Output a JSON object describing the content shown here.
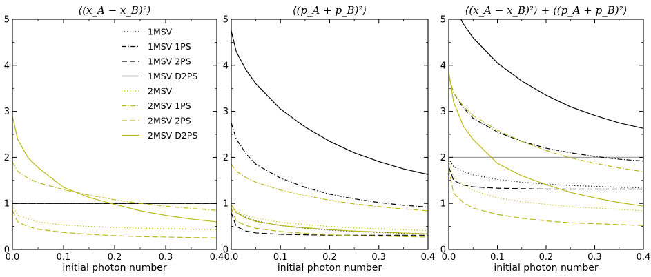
{
  "chart_data": [
    {
      "type": "line",
      "title": "⟨(x_A − x_B)²⟩",
      "xlabel": "initial photon number",
      "ylabel": "",
      "xlim": [
        0,
        0.4
      ],
      "ylim": [
        0,
        5
      ],
      "xticks": [
        "0.0",
        "0.1",
        "0.2",
        "0.3",
        "0.4"
      ],
      "yticks": [
        "0",
        "1",
        "2",
        "3",
        "4",
        "5"
      ],
      "grid": false,
      "legend_position": "top-right",
      "series": [
        {
          "name": "1MSV",
          "x": [
            0,
            0.1,
            0.2,
            0.3,
            0.4
          ],
          "y": [
            1.0,
            1.0,
            1.0,
            1.0,
            1.0
          ]
        },
        {
          "name": "1MSV 1PS",
          "x": [
            0,
            0.1,
            0.2,
            0.3,
            0.4
          ],
          "y": [
            1.0,
            1.0,
            1.0,
            1.0,
            1.0
          ]
        },
        {
          "name": "1MSV 2PS",
          "x": [
            0,
            0.1,
            0.2,
            0.3,
            0.4
          ],
          "y": [
            1.0,
            1.0,
            1.0,
            1.0,
            1.0
          ]
        },
        {
          "name": "1MSV D2PS",
          "x": [
            0,
            0.1,
            0.2,
            0.3,
            0.4
          ],
          "y": [
            1.0,
            1.0,
            1.0,
            1.0,
            1.0
          ]
        },
        {
          "name": "2MSV",
          "x": [
            0,
            0.01,
            0.03,
            0.05,
            0.1,
            0.15,
            0.2,
            0.25,
            0.3,
            0.35,
            0.4
          ],
          "y": [
            0.95,
            0.75,
            0.66,
            0.6,
            0.53,
            0.5,
            0.48,
            0.46,
            0.45,
            0.44,
            0.43
          ]
        },
        {
          "name": "2MSV 1PS",
          "x": [
            0,
            0.01,
            0.03,
            0.05,
            0.1,
            0.15,
            0.2,
            0.25,
            0.3,
            0.35,
            0.4
          ],
          "y": [
            1.9,
            1.7,
            1.55,
            1.45,
            1.3,
            1.18,
            1.08,
            1.0,
            0.94,
            0.89,
            0.85
          ]
        },
        {
          "name": "2MSV 2PS",
          "x": [
            0,
            0.01,
            0.03,
            0.05,
            0.1,
            0.15,
            0.2,
            0.25,
            0.3,
            0.35,
            0.4
          ],
          "y": [
            0.85,
            0.6,
            0.5,
            0.44,
            0.37,
            0.33,
            0.3,
            0.28,
            0.27,
            0.26,
            0.25
          ]
        },
        {
          "name": "2MSV D2PS",
          "x": [
            0,
            0.01,
            0.03,
            0.05,
            0.1,
            0.15,
            0.2,
            0.25,
            0.3,
            0.35,
            0.4
          ],
          "y": [
            2.9,
            2.4,
            2.0,
            1.78,
            1.35,
            1.13,
            0.98,
            0.84,
            0.74,
            0.66,
            0.6
          ]
        }
      ]
    },
    {
      "type": "line",
      "title": "⟨(p_A + p_B)²⟩",
      "xlabel": "initial photon number",
      "ylabel": "",
      "xlim": [
        0,
        0.4
      ],
      "ylim": [
        0,
        5
      ],
      "xticks": [
        "0.0",
        "0.1",
        "0.2",
        "0.3",
        "0.4"
      ],
      "yticks": [
        "0",
        "1",
        "2",
        "3",
        "4",
        "5"
      ],
      "grid": false,
      "series": [
        {
          "name": "1MSV",
          "x": [
            0,
            0.01,
            0.03,
            0.05,
            0.1,
            0.15,
            0.2,
            0.25,
            0.3,
            0.35,
            0.4
          ],
          "y": [
            0.97,
            0.8,
            0.7,
            0.62,
            0.52,
            0.46,
            0.42,
            0.39,
            0.37,
            0.35,
            0.34
          ]
        },
        {
          "name": "1MSV 1PS",
          "x": [
            0,
            0.01,
            0.03,
            0.05,
            0.1,
            0.15,
            0.2,
            0.25,
            0.3,
            0.35,
            0.4
          ],
          "y": [
            2.75,
            2.4,
            2.08,
            1.85,
            1.55,
            1.35,
            1.2,
            1.1,
            1.02,
            0.96,
            0.92
          ]
        },
        {
          "name": "1MSV 2PS",
          "x": [
            0,
            0.01,
            0.03,
            0.05,
            0.1,
            0.15,
            0.2,
            0.25,
            0.3,
            0.35,
            0.4
          ],
          "y": [
            0.8,
            0.5,
            0.4,
            0.36,
            0.33,
            0.32,
            0.31,
            0.31,
            0.31,
            0.31,
            0.31
          ]
        },
        {
          "name": "1MSV D2PS",
          "x": [
            0,
            0.01,
            0.03,
            0.05,
            0.1,
            0.15,
            0.2,
            0.25,
            0.3,
            0.35,
            0.4
          ],
          "y": [
            4.75,
            4.3,
            3.9,
            3.6,
            3.05,
            2.66,
            2.35,
            2.1,
            1.91,
            1.75,
            1.63
          ]
        },
        {
          "name": "2MSV",
          "x": [
            0,
            0.01,
            0.03,
            0.05,
            0.1,
            0.15,
            0.2,
            0.25,
            0.3,
            0.35,
            0.4
          ],
          "y": [
            0.97,
            0.83,
            0.74,
            0.68,
            0.59,
            0.54,
            0.5,
            0.47,
            0.45,
            0.43,
            0.41
          ]
        },
        {
          "name": "2MSV 1PS",
          "x": [
            0,
            0.01,
            0.03,
            0.05,
            0.1,
            0.15,
            0.2,
            0.25,
            0.3,
            0.35,
            0.4
          ],
          "y": [
            1.85,
            1.7,
            1.56,
            1.46,
            1.29,
            1.17,
            1.07,
            0.99,
            0.93,
            0.88,
            0.84
          ]
        },
        {
          "name": "2MSV 2PS",
          "x": [
            0,
            0.01,
            0.03,
            0.05,
            0.1,
            0.15,
            0.2,
            0.25,
            0.3,
            0.35,
            0.4
          ],
          "y": [
            0.9,
            0.62,
            0.52,
            0.46,
            0.39,
            0.35,
            0.32,
            0.3,
            0.29,
            0.28,
            0.27
          ]
        },
        {
          "name": "2MSV D2PS",
          "x": [
            0,
            0.01,
            0.03,
            0.05,
            0.1,
            0.15,
            0.2,
            0.25,
            0.3,
            0.35,
            0.4
          ],
          "y": [
            0.97,
            0.8,
            0.68,
            0.61,
            0.52,
            0.47,
            0.43,
            0.4,
            0.38,
            0.36,
            0.34
          ]
        }
      ]
    },
    {
      "type": "line",
      "title": "⟨(x_A − x_B)²⟩ + ⟨(p_A + p_B)²⟩",
      "xlabel": "initial photon number",
      "ylabel": "",
      "xlim": [
        0,
        0.4
      ],
      "ylim": [
        0,
        5
      ],
      "xticks": [
        "0.0",
        "0.1",
        "0.2",
        "0.3",
        "0.4"
      ],
      "yticks": [
        "0",
        "1",
        "2",
        "3",
        "4",
        "5"
      ],
      "grid": false,
      "reference_line": {
        "y": 2,
        "color": "#a0a0a0"
      },
      "series": [
        {
          "name": "1MSV",
          "x": [
            0,
            0.01,
            0.03,
            0.05,
            0.1,
            0.15,
            0.2,
            0.25,
            0.3,
            0.35,
            0.4
          ],
          "y": [
            1.97,
            1.8,
            1.7,
            1.62,
            1.52,
            1.46,
            1.42,
            1.39,
            1.37,
            1.35,
            1.34
          ]
        },
        {
          "name": "1MSV 1PS",
          "x": [
            0,
            0.01,
            0.03,
            0.05,
            0.1,
            0.15,
            0.2,
            0.25,
            0.3,
            0.35,
            0.4
          ],
          "y": [
            3.75,
            3.4,
            3.08,
            2.85,
            2.55,
            2.35,
            2.2,
            2.1,
            2.02,
            1.96,
            1.92
          ]
        },
        {
          "name": "1MSV 2PS",
          "x": [
            0,
            0.01,
            0.03,
            0.05,
            0.1,
            0.15,
            0.2,
            0.25,
            0.3,
            0.35,
            0.4
          ],
          "y": [
            1.8,
            1.5,
            1.4,
            1.36,
            1.33,
            1.32,
            1.31,
            1.31,
            1.31,
            1.31,
            1.31
          ]
        },
        {
          "name": "1MSV D2PS",
          "x": [
            0,
            0.01,
            0.03,
            0.05,
            0.1,
            0.15,
            0.2,
            0.25,
            0.3,
            0.35,
            0.4
          ],
          "y": [
            5.75,
            5.3,
            4.9,
            4.6,
            4.05,
            3.66,
            3.35,
            3.1,
            2.91,
            2.75,
            2.63
          ]
        },
        {
          "name": "2MSV",
          "x": [
            0,
            0.01,
            0.03,
            0.05,
            0.1,
            0.15,
            0.2,
            0.25,
            0.3,
            0.35,
            0.4
          ],
          "y": [
            1.92,
            1.58,
            1.4,
            1.28,
            1.12,
            1.04,
            0.98,
            0.93,
            0.9,
            0.87,
            0.84
          ]
        },
        {
          "name": "2MSV 1PS",
          "x": [
            0,
            0.01,
            0.03,
            0.05,
            0.1,
            0.15,
            0.2,
            0.25,
            0.3,
            0.35,
            0.4
          ],
          "y": [
            3.75,
            3.4,
            3.11,
            2.91,
            2.59,
            2.35,
            2.15,
            1.99,
            1.87,
            1.77,
            1.69
          ]
        },
        {
          "name": "2MSV 2PS",
          "x": [
            0,
            0.01,
            0.03,
            0.05,
            0.1,
            0.15,
            0.2,
            0.25,
            0.3,
            0.35,
            0.4
          ],
          "y": [
            1.75,
            1.22,
            1.02,
            0.9,
            0.76,
            0.68,
            0.62,
            0.58,
            0.56,
            0.54,
            0.52
          ]
        },
        {
          "name": "2MSV D2PS",
          "x": [
            0,
            0.01,
            0.03,
            0.05,
            0.1,
            0.15,
            0.2,
            0.25,
            0.3,
            0.35,
            0.4
          ],
          "y": [
            3.87,
            3.2,
            2.68,
            2.39,
            1.87,
            1.6,
            1.41,
            1.24,
            1.12,
            1.02,
            0.94
          ]
        }
      ]
    }
  ],
  "series_styles": {
    "1MSV": {
      "color": "#000000",
      "dash": "1.2 2.8"
    },
    "1MSV 1PS": {
      "color": "#000000",
      "dash": "7 2.5 1.2 2.5"
    },
    "1MSV 2PS": {
      "color": "#000000",
      "dash": "8 4"
    },
    "1MSV D2PS": {
      "color": "#000000",
      "dash": ""
    },
    "2MSV": {
      "color": "#b8b819",
      "dash": "1.2 2.8"
    },
    "2MSV 1PS": {
      "color": "#b8b819",
      "dash": "7 2.5 1.2 2.5"
    },
    "2MSV 2PS": {
      "color": "#b8b819",
      "dash": "8 4"
    },
    "2MSV D2PS": {
      "color": "#b8b819",
      "dash": ""
    }
  }
}
